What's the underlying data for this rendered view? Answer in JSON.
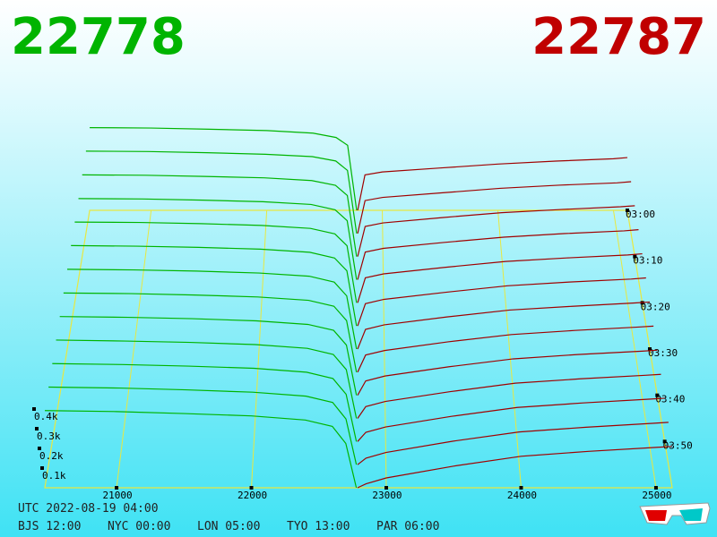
{
  "chart_data": {
    "type": "depth3d",
    "best_bid": 22778,
    "best_ask": 22787,
    "bid_color": "#00b400",
    "ask_color": "#a00000",
    "xlim": [
      20468,
      25120
    ],
    "xticks": [
      21000,
      22000,
      23000,
      24000,
      25000
    ],
    "ylim": [
      0,
      500
    ],
    "yticks": [
      {
        "value": 100,
        "label": "0.1k"
      },
      {
        "value": 200,
        "label": "0.2k"
      },
      {
        "value": 300,
        "label": "0.3k"
      },
      {
        "value": 400,
        "label": "0.4k"
      }
    ],
    "zlim": [
      0,
      60
    ],
    "zticks": [
      {
        "value": 0,
        "label": "03:00"
      },
      {
        "value": 10,
        "label": "03:10"
      },
      {
        "value": 20,
        "label": "03:20"
      },
      {
        "value": 30,
        "label": "03:30"
      },
      {
        "value": 40,
        "label": "03:40"
      },
      {
        "value": 50,
        "label": "03:50"
      }
    ],
    "bid_prices": [
      20468,
      21000,
      21500,
      22000,
      22400,
      22600,
      22700,
      22778
    ],
    "ask_prices": [
      22787,
      22850,
      23000,
      23500,
      24000,
      24500,
      25000,
      25120
    ],
    "layers": [
      {
        "t": 0,
        "bids": [
          420,
          418,
          412,
          405,
          392,
          370,
          330,
          0
        ],
        "asks": [
          0,
          180,
          195,
          215,
          235,
          250,
          262,
          268
        ]
      },
      {
        "t": 5,
        "bids": [
          418,
          416,
          410,
          402,
          390,
          368,
          320,
          0
        ],
        "asks": [
          0,
          167,
          183,
          206,
          229,
          245,
          257,
          263
        ]
      },
      {
        "t": 10,
        "bids": [
          415,
          413,
          407,
          400,
          386,
          362,
          310,
          0
        ],
        "asks": [
          0,
          153,
          171,
          198,
          223,
          239,
          253,
          258
        ]
      },
      {
        "t": 15,
        "bids": [
          412,
          410,
          404,
          396,
          382,
          355,
          300,
          0
        ],
        "asks": [
          0,
          140,
          159,
          189,
          216,
          234,
          248,
          254
        ]
      },
      {
        "t": 20,
        "bids": [
          410,
          408,
          402,
          393,
          378,
          350,
          290,
          0
        ],
        "asks": [
          0,
          127,
          147,
          180,
          210,
          228,
          243,
          249
        ]
      },
      {
        "t": 25,
        "bids": [
          408,
          405,
          399,
          390,
          374,
          345,
          280,
          0
        ],
        "asks": [
          0,
          113,
          135,
          171,
          204,
          223,
          238,
          244
        ]
      },
      {
        "t": 30,
        "bids": [
          405,
          402,
          396,
          386,
          370,
          340,
          270,
          0
        ],
        "asks": [
          0,
          100,
          123,
          163,
          198,
          217,
          234,
          239
        ]
      },
      {
        "t": 35,
        "bids": [
          402,
          399,
          392,
          382,
          365,
          335,
          262,
          0
        ],
        "asks": [
          0,
          87,
          110,
          154,
          191,
          212,
          229,
          234
        ]
      },
      {
        "t": 40,
        "bids": [
          400,
          396,
          389,
          378,
          360,
          330,
          255,
          0
        ],
        "asks": [
          0,
          73,
          98,
          145,
          185,
          207,
          224,
          229
        ]
      },
      {
        "t": 45,
        "bids": [
          398,
          393,
          386,
          375,
          356,
          325,
          248,
          0
        ],
        "asks": [
          0,
          60,
          86,
          136,
          179,
          201,
          219,
          224
        ]
      },
      {
        "t": 50,
        "bids": [
          396,
          391,
          383,
          372,
          352,
          320,
          240,
          0
        ],
        "asks": [
          0,
          47,
          74,
          128,
          173,
          196,
          215,
          220
        ]
      },
      {
        "t": 55,
        "bids": [
          394,
          389,
          380,
          368,
          348,
          316,
          232,
          0
        ],
        "asks": [
          0,
          33,
          62,
          119,
          166,
          190,
          210,
          215
        ]
      },
      {
        "t": 60,
        "bids": [
          392,
          387,
          377,
          365,
          344,
          312,
          225,
          0
        ],
        "asks": [
          0,
          20,
          50,
          110,
          160,
          185,
          205,
          210
        ]
      }
    ],
    "footer": {
      "utc": "UTC 2022-08-19 04:00",
      "zones": [
        "BJS 12:00",
        "NYC 00:00",
        "LON 05:00",
        "TYO 13:00",
        "PAR 06:00"
      ]
    }
  }
}
